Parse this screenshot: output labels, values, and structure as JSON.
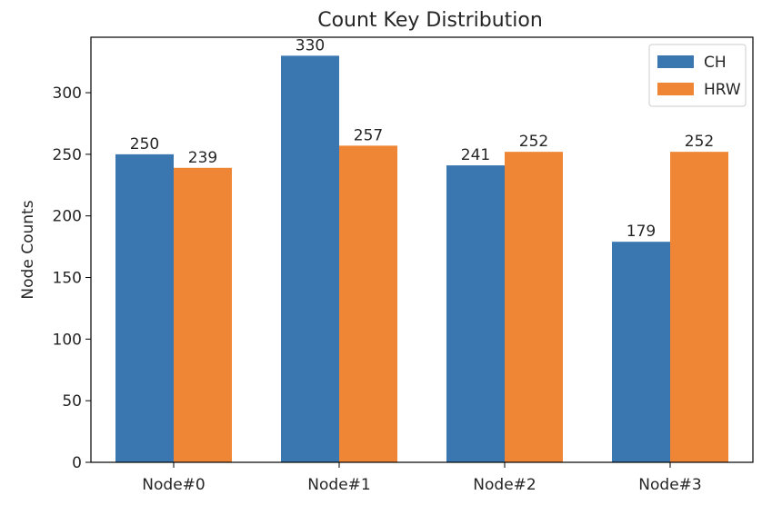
{
  "chart_data": {
    "type": "bar",
    "title": "Count Key Distribution",
    "xlabel": "",
    "ylabel": "Node Counts",
    "categories": [
      "Node#0",
      "Node#1",
      "Node#2",
      "Node#3"
    ],
    "series": [
      {
        "name": "CH",
        "values": [
          250,
          330,
          241,
          179
        ],
        "color": "#3a76af"
      },
      {
        "name": "HRW",
        "values": [
          239,
          257,
          252,
          252
        ],
        "color": "#ef8636"
      }
    ],
    "ylim": [
      0,
      345
    ],
    "yticks": [
      0,
      50,
      100,
      150,
      200,
      250,
      300
    ],
    "grid": false,
    "legend_position": "top-right"
  }
}
